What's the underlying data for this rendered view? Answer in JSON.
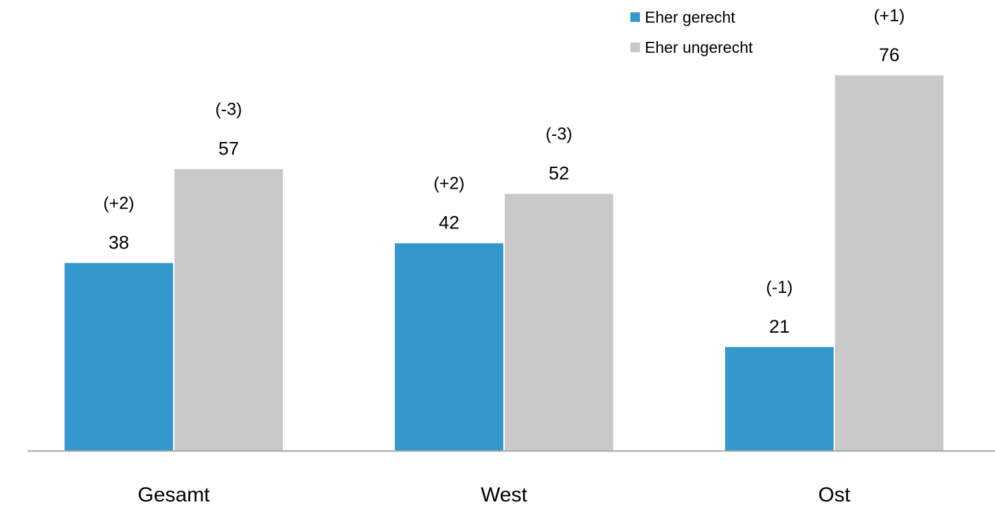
{
  "chart_data": {
    "type": "bar",
    "categories": [
      "Gesamt",
      "West",
      "Ost"
    ],
    "series": [
      {
        "name": "Eher gerecht",
        "color": "#3598CC",
        "values": [
          38,
          42,
          21
        ],
        "changes": [
          "(+2)",
          "(+2)",
          "(-1)"
        ]
      },
      {
        "name": "Eher ungerecht",
        "color": "#C9C9C9",
        "values": [
          57,
          52,
          76
        ],
        "changes": [
          "(-3)",
          "(-3)",
          "(+1)"
        ]
      }
    ],
    "ylim": [
      0,
      80
    ],
    "grid": false,
    "legend_position": "top-right",
    "axis_line_color": "#A6A6A6"
  }
}
